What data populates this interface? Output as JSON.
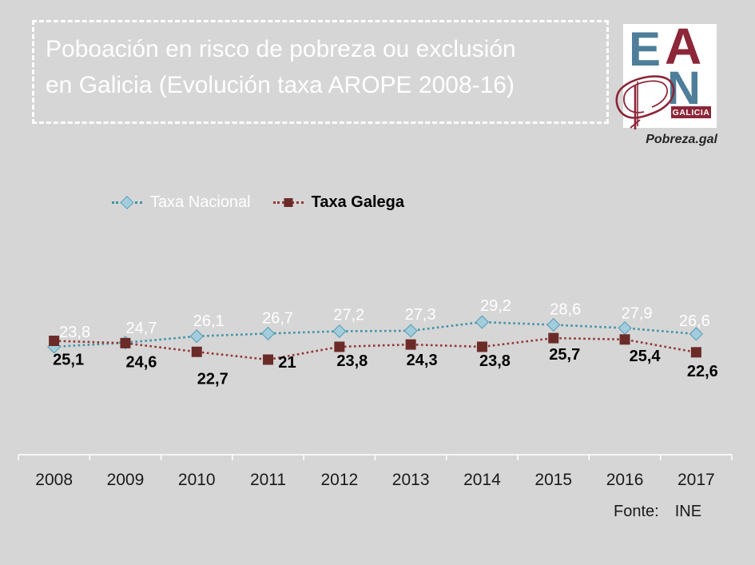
{
  "colors": {
    "background": "#D6D6D6",
    "title_text": "#FFFFFF",
    "title_border": "#FFFFFF",
    "axis_line": "#FFFFFF",
    "year_label": "#1A1A1A",
    "nacional_line": "#3E93A8",
    "nacional_marker_fill": "#A3CDDD",
    "nacional_marker_edge": "#5EA4B8",
    "nacional_label": "#FFFFFF",
    "galega_line": "#953735",
    "galega_marker": "#6B2B28",
    "galega_label": "#000000",
    "legend_nacional_text": "#FFFFFF",
    "legend_galega_text": "#000000",
    "logo_blue": "#4E7E99",
    "logo_maroon": "#8C2638",
    "logo_bg": "#FFFFFF",
    "website_text": "#262626",
    "source_text": "#1A1A1A"
  },
  "header": {
    "title_line1": "Poboación en risco de pobreza ou exclusión",
    "title_line2": "en Galicia (Evolución taxa AROPE 2008-16)",
    "website": "Pobreza.gal",
    "logo": {
      "e": "E",
      "a": "A",
      "p": "P",
      "n": "N",
      "region": "GALICIA"
    }
  },
  "chart_data": {
    "type": "line",
    "title": "Poboación en risco de pobreza ou exclusión en Galicia (Evolución taxa AROPE 2008-16)",
    "categories": [
      "2008",
      "2009",
      "2010",
      "2011",
      "2012",
      "2013",
      "2014",
      "2015",
      "2016",
      "2017"
    ],
    "series": [
      {
        "name": "Taxa Nacional",
        "marker": "diamond",
        "values": [
          23.8,
          24.7,
          26.1,
          26.7,
          27.2,
          27.3,
          29.2,
          28.6,
          27.9,
          26.6
        ],
        "labels": [
          "23,8",
          "24,7",
          "26,1",
          "26,7",
          "27,2",
          "27,3",
          "29,2",
          "28,6",
          "27,9",
          "26,6"
        ]
      },
      {
        "name": "Taxa Galega",
        "marker": "square",
        "values": [
          25.1,
          24.6,
          22.7,
          21,
          23.8,
          24.3,
          23.8,
          25.7,
          25.4,
          22.6
        ],
        "labels": [
          "25,1",
          "24,6",
          "22,7",
          "21",
          "23,8",
          "24,3",
          "23,8",
          "25,7",
          "25,4",
          "22,6"
        ]
      }
    ],
    "xlabel": "",
    "ylabel": "",
    "y_range_implied": [
      20,
      30
    ],
    "grid": false,
    "legend_position": "top-left"
  },
  "footer": {
    "source_label": "Fonte:",
    "source_value": "INE"
  }
}
